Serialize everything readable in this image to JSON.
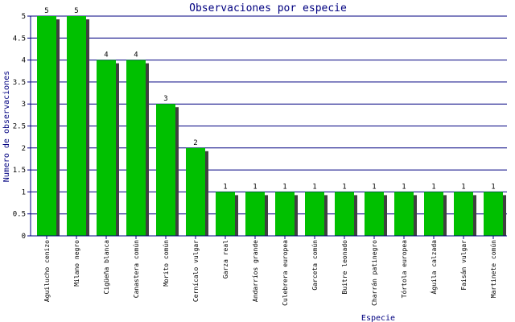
{
  "chart_data": {
    "type": "bar",
    "title": "Observaciones por especie",
    "xlabel": "Especie",
    "ylabel": "Numero de observaciones",
    "ylim": [
      0,
      5
    ],
    "yticks": [
      "0",
      "0.5",
      "1",
      "1.5",
      "2",
      "2.5",
      "3",
      "3.5",
      "4",
      "4.5",
      "5"
    ],
    "grid": true,
    "categories": [
      "Aguilucho cenizo",
      "Milano negro",
      "Cigüeña blanca",
      "Canastera común",
      "Morito común",
      "Cernícalo vulgar",
      "Garza real",
      "Andarríos grande",
      "Culebrera europea",
      "Garceta común",
      "Buitre leonado",
      "Charrán patinegro",
      "Tórtola europea",
      "Águila calzada",
      "Faisán vulgar",
      "Martinete común"
    ],
    "values": [
      5,
      5,
      4,
      4,
      3,
      2,
      1,
      1,
      1,
      1,
      1,
      1,
      1,
      1,
      1,
      1
    ],
    "data_labels": [
      "5",
      "5",
      "4",
      "4",
      "3",
      "2",
      "1",
      "1",
      "1",
      "1",
      "1",
      "1",
      "1",
      "1",
      "1",
      "1"
    ],
    "colors": {
      "bar": "#00c000",
      "bar_shadow": "#404040",
      "gridline": "#000080",
      "axis": "#000080",
      "tick_text": "#000000",
      "title": "#000080",
      "axis_label": "#000080"
    }
  }
}
